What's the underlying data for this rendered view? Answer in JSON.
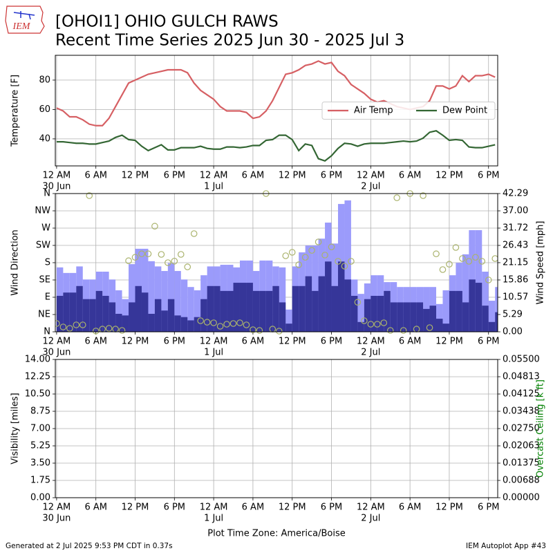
{
  "header": {
    "title": "[OHOI1] OHIO GULCH RAWS",
    "subtitle": "Recent Time Series 2025 Jun 30 - 2025 Jul 3",
    "logo_text": "IEM"
  },
  "footer": {
    "left": "Generated at 2 Jul 2025 9:53 PM CDT in 0.37s",
    "right": "IEM Autoplot App #43"
  },
  "chart_data": [
    {
      "type": "line",
      "ylabel": "Temperature [F]",
      "x": [
        0,
        1,
        2,
        3,
        4,
        5,
        6,
        7,
        8,
        9,
        10,
        11,
        12,
        13,
        14,
        15,
        16,
        17,
        18,
        19,
        20,
        21,
        22,
        23,
        24,
        25,
        26,
        27,
        28,
        29,
        30,
        31,
        32,
        33,
        34,
        35,
        36,
        37,
        38,
        39,
        40,
        41,
        42,
        43,
        44,
        45,
        46,
        47,
        48,
        49,
        50,
        51,
        52,
        53,
        54,
        55,
        56,
        57,
        58,
        59,
        60,
        61,
        62,
        63,
        64,
        65,
        66,
        67
      ],
      "xlim": [
        -0.2,
        67.4
      ],
      "xticks": [
        {
          "value": 0,
          "label": "12 AM"
        },
        {
          "value": 6,
          "label": "6 AM"
        },
        {
          "value": 12,
          "label": "12 PM"
        },
        {
          "value": 18,
          "label": "6 PM"
        },
        {
          "value": 24,
          "label": "12 AM"
        },
        {
          "value": 30,
          "label": "6 AM"
        },
        {
          "value": 36,
          "label": "12 PM"
        },
        {
          "value": 42,
          "label": "6 PM"
        },
        {
          "value": 48,
          "label": "12 AM"
        },
        {
          "value": 54,
          "label": "6 AM"
        },
        {
          "value": 60,
          "label": "12 PM"
        },
        {
          "value": 66,
          "label": "6 PM"
        }
      ],
      "xdates": [
        {
          "value": 0,
          "label": "30 Jun"
        },
        {
          "value": 24,
          "label": "1 Jul"
        },
        {
          "value": 48,
          "label": "2 Jul"
        }
      ],
      "ylim": [
        21.6,
        96.9
      ],
      "yticks": [
        40,
        60,
        80
      ],
      "grid": true,
      "legend": "center right",
      "series": [
        {
          "name": "Air Temp",
          "color": "#d65f63",
          "values": [
            61,
            59,
            55,
            55,
            53,
            50,
            49,
            49,
            54,
            62,
            70,
            78,
            80,
            82,
            84,
            85,
            86,
            87,
            87,
            87,
            85,
            78,
            73,
            70,
            67,
            62,
            59,
            59,
            59,
            58,
            54,
            55,
            59,
            66,
            75,
            84,
            85,
            87,
            90,
            91,
            93,
            91,
            92,
            86,
            83,
            77,
            74,
            71,
            67,
            65,
            66,
            64,
            62,
            61,
            60,
            61,
            62,
            66,
            76,
            76,
            74,
            76,
            83,
            79,
            83,
            83,
            84,
            82
          ]
        },
        {
          "name": "Dew Point",
          "color": "#336633",
          "values": [
            38,
            38,
            37.5,
            37,
            37,
            36.5,
            36.5,
            37.5,
            38.5,
            41,
            42.5,
            39.5,
            39,
            35,
            32,
            34,
            36,
            32.5,
            32.5,
            34,
            34,
            34,
            35,
            33.5,
            33,
            33,
            34.5,
            34.5,
            34,
            34.5,
            35.5,
            35.5,
            39,
            39.5,
            42.5,
            42.5,
            39.5,
            32,
            36.5,
            35.5,
            26.5,
            25,
            28.5,
            33.5,
            37,
            36.5,
            35,
            36.5,
            37,
            37,
            37,
            37.5,
            38,
            38.5,
            38,
            38.5,
            40.5,
            44.5,
            45.5,
            42.5,
            39,
            39.5,
            39,
            34.5,
            34,
            34,
            35,
            36
          ]
        }
      ]
    },
    {
      "type": "bar",
      "ylabel": "Wind Direction",
      "y2label": "Wind Speed [mph]",
      "x": [
        0,
        1,
        2,
        3,
        4,
        5,
        6,
        7,
        8,
        9,
        10,
        11,
        12,
        13,
        14,
        15,
        16,
        17,
        18,
        19,
        20,
        21,
        22,
        23,
        24,
        25,
        26,
        27,
        28,
        29,
        30,
        31,
        32,
        33,
        34,
        35,
        36,
        37,
        38,
        39,
        40,
        41,
        42,
        43,
        44,
        45,
        46,
        47,
        48,
        49,
        50,
        51,
        52,
        53,
        54,
        55,
        56,
        57,
        58,
        59,
        60,
        61,
        62,
        63,
        64,
        65,
        66,
        67
      ],
      "xlim": [
        -0.2,
        67.4
      ],
      "xticks": [
        {
          "value": 0,
          "label": "12 AM"
        },
        {
          "value": 6,
          "label": "6 AM"
        },
        {
          "value": 12,
          "label": "12 PM"
        },
        {
          "value": 18,
          "label": "6 PM"
        },
        {
          "value": 24,
          "label": "12 AM"
        },
        {
          "value": 30,
          "label": "6 AM"
        },
        {
          "value": 36,
          "label": "12 PM"
        },
        {
          "value": 42,
          "label": "6 PM"
        },
        {
          "value": 48,
          "label": "12 AM"
        },
        {
          "value": 54,
          "label": "6 AM"
        },
        {
          "value": 60,
          "label": "12 PM"
        },
        {
          "value": 66,
          "label": "6 PM"
        }
      ],
      "xdates": [
        {
          "value": 0,
          "label": "30 Jun"
        },
        {
          "value": 24,
          "label": "1 Jul"
        },
        {
          "value": 48,
          "label": "2 Jul"
        }
      ],
      "ylim": [
        0,
        360
      ],
      "yticks": [
        {
          "value": 0,
          "label": "N"
        },
        {
          "value": 45,
          "label": "NE"
        },
        {
          "value": 90,
          "label": "E"
        },
        {
          "value": 135,
          "label": "SE"
        },
        {
          "value": 180,
          "label": "S"
        },
        {
          "value": 225,
          "label": "SW"
        },
        {
          "value": 270,
          "label": "W"
        },
        {
          "value": 315,
          "label": "NW"
        },
        {
          "value": 360,
          "label": "N"
        }
      ],
      "y2lim": [
        0,
        42.29
      ],
      "y2ticks": [
        {
          "value": 0,
          "label": "0.00"
        },
        5.29,
        10.57,
        15.86,
        21.15,
        26.43,
        31.72,
        {
          "value": 37,
          "label": "37.00"
        },
        42.29
      ],
      "grid": true,
      "series": [
        {
          "type": "bar",
          "axis": "y2",
          "color": "#9b9bfb",
          "values": [
            19.7,
            18,
            18,
            20,
            16,
            16,
            18.4,
            18.4,
            16,
            12.7,
            10,
            20.7,
            25.4,
            25.4,
            21.6,
            20,
            18.6,
            21,
            18.6,
            16,
            13.7,
            12.7,
            17.3,
            20,
            20,
            20.5,
            20.5,
            19.7,
            21.8,
            21.8,
            18.6,
            21.8,
            21.8,
            20,
            19.7,
            6.8,
            20,
            24.3,
            26.4,
            26.4,
            28.5,
            33.4,
            27,
            39.1,
            40.2,
            16,
            11.6,
            14.8,
            17.3,
            17.3,
            15.2,
            15.2,
            13.7,
            13.7,
            13.7,
            13.7,
            13.7,
            13.7,
            8.5,
            12.7,
            17.3,
            21.1,
            23.7,
            31.1,
            31.1,
            18.4,
            9.5,
            13.7
          ]
        },
        {
          "type": "bar",
          "axis": "y2",
          "color": "#363699",
          "values": [
            11,
            12,
            12,
            14,
            10,
            10,
            12.5,
            11,
            9,
            5.5,
            5,
            9,
            14,
            12,
            5.5,
            10,
            6.5,
            10,
            5,
            4.5,
            3.5,
            4.5,
            10,
            14,
            14,
            12.5,
            12.5,
            15,
            15,
            15,
            12.5,
            12.5,
            12.5,
            14,
            9,
            2.5,
            14,
            14,
            17,
            12.5,
            17,
            21.5,
            14,
            21.5,
            16,
            11,
            3,
            10,
            11,
            11,
            12.5,
            9,
            9,
            9,
            9,
            9,
            7,
            8,
            4,
            2.5,
            12.5,
            12.5,
            9,
            16,
            15,
            8,
            3,
            6
          ]
        },
        {
          "type": "scatter",
          "color": "#aab36c",
          "values": [
            21.6,
            12.6,
            9,
            18,
            18,
            354.6,
            2,
            7,
            9,
            7,
            3.6,
            185,
            194,
            203,
            203,
            275,
            201.6,
            180,
            184,
            201.6,
            169,
            255.6,
            28.8,
            25,
            23.4,
            14.4,
            19.8,
            21.6,
            23.4,
            18,
            5.4,
            3.6,
            360,
            7,
            1.8,
            198,
            207,
            174.6,
            194,
            212,
            234,
            199.8,
            221,
            183.6,
            171,
            183.6,
            77,
            28.8,
            19.8,
            19.8,
            23.4,
            3.6,
            349,
            3.6,
            360,
            7,
            354.6,
            10.8,
            203,
            162,
            176,
            219.6,
            190.8,
            183.6,
            194,
            183.6,
            135,
            190.8
          ]
        }
      ]
    },
    {
      "type": "line",
      "ylabel": "Visibility [miles]",
      "y2label": "Overcast Ceiling [k ft]",
      "y2label_color": "#008000",
      "xlabel": "Plot Time Zone: America/Boise",
      "xlim": [
        -0.2,
        67.4
      ],
      "xticks": [
        {
          "value": 0,
          "label": "12 AM"
        },
        {
          "value": 6,
          "label": "6 AM"
        },
        {
          "value": 12,
          "label": "12 PM"
        },
        {
          "value": 18,
          "label": "6 PM"
        },
        {
          "value": 24,
          "label": "12 AM"
        },
        {
          "value": 30,
          "label": "6 AM"
        },
        {
          "value": 36,
          "label": "12 PM"
        },
        {
          "value": 42,
          "label": "6 PM"
        },
        {
          "value": 48,
          "label": "12 AM"
        },
        {
          "value": 54,
          "label": "6 AM"
        },
        {
          "value": 60,
          "label": "12 PM"
        },
        {
          "value": 66,
          "label": "6 PM"
        }
      ],
      "xdates": [
        {
          "value": 0,
          "label": "30 Jun"
        },
        {
          "value": 24,
          "label": "1 Jul"
        },
        {
          "value": 48,
          "label": "2 Jul"
        }
      ],
      "ylim": [
        0,
        14
      ],
      "yticks": [
        {
          "value": 0,
          "label": "0.00"
        },
        1.75,
        {
          "value": 3.5,
          "label": "3.50"
        },
        5.25,
        {
          "value": 7,
          "label": "7.00"
        },
        8.75,
        {
          "value": 10.5,
          "label": "10.50"
        },
        12.25,
        {
          "value": 14,
          "label": "14.00"
        }
      ],
      "y2lim": [
        0,
        0.055
      ],
      "y2ticks": [
        {
          "value": 0,
          "label": "0.00000"
        },
        {
          "value": 0.006875,
          "label": "0.00688"
        },
        {
          "value": 0.01375,
          "label": "0.01375"
        },
        {
          "value": 0.020625,
          "label": "0.02063"
        },
        {
          "value": 0.0275,
          "label": "0.02750"
        },
        {
          "value": 0.034375,
          "label": "0.03438"
        },
        {
          "value": 0.04125,
          "label": "0.04125"
        },
        {
          "value": 0.048125,
          "label": "0.04813"
        },
        {
          "value": 0.055,
          "label": "0.05500"
        }
      ],
      "grid": true,
      "series": []
    }
  ]
}
